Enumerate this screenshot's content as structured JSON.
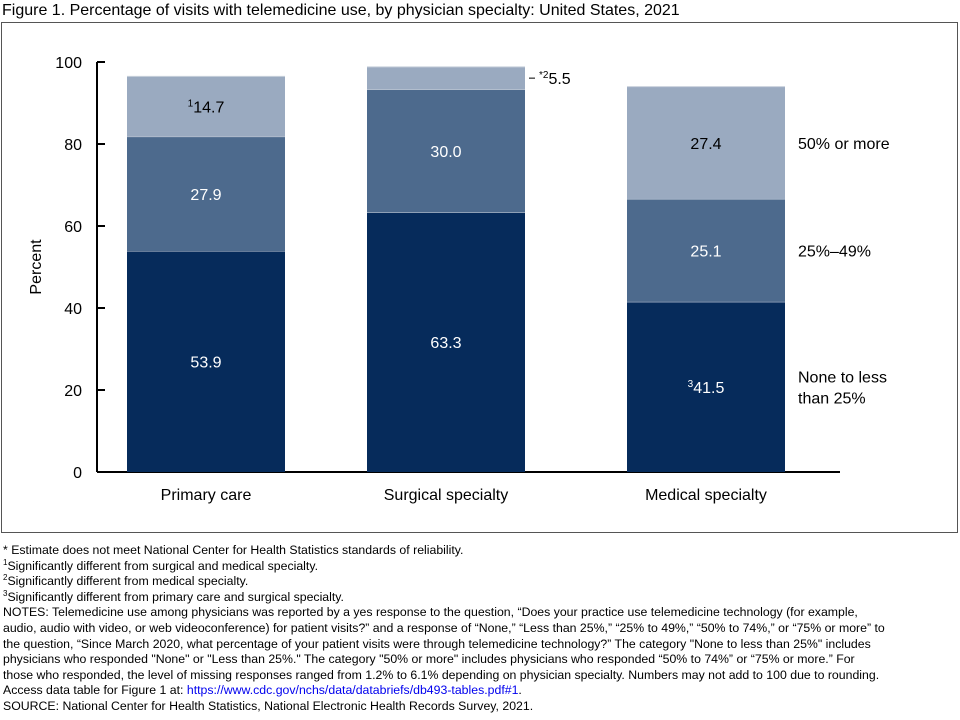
{
  "title": "Figure 1. Percentage of visits with telemedicine use, by physician specialty: United States, 2021",
  "chart_data": {
    "type": "bar",
    "stacked": true,
    "categories": [
      "Primary care",
      "Surgical specialty",
      "Medical specialty"
    ],
    "series": [
      {
        "name": "None to less than 25%",
        "values": [
          53.9,
          63.3,
          41.5
        ],
        "labels": [
          "53.9",
          "63.3",
          "41.5"
        ],
        "label_sups": [
          "",
          "",
          "3"
        ],
        "color": "#062b5b"
      },
      {
        "name": "25%–49%",
        "values": [
          27.9,
          30.0,
          25.1
        ],
        "labels": [
          "27.9",
          "30.0",
          "25.1"
        ],
        "label_sups": [
          "",
          "",
          ""
        ],
        "color": "#4d6a8d"
      },
      {
        "name": "50% or more",
        "values": [
          14.7,
          5.5,
          27.4
        ],
        "labels": [
          "14.7",
          "5.5",
          "27.4"
        ],
        "label_sups": [
          "1",
          "*2",
          ""
        ],
        "color": "#9aaac0"
      }
    ],
    "ylabel": "Percent",
    "xlabel": "",
    "ylim": [
      0,
      100
    ],
    "yticks": [
      0,
      20,
      40,
      60,
      80,
      100
    ],
    "legend_placement": "right",
    "grid": false
  },
  "footnotes": {
    "star": "* Estimate does not meet National Center for Health Statistics standards of reliability.",
    "n1": "Significantly different from surgical and medical specialty.",
    "n2": "Significantly different from medical specialty.",
    "n3": "Significantly different from primary care and surgical specialty.",
    "notes_lines": [
      "NOTES: Telemedicine use among physicians was reported by a yes response to the question, “Does your practice use telemedicine technology (for example,",
      "audio, audio with video, or web videoconference) for patient visits?” and a response of “None,” “Less than 25%,” “25% to 49%,” “50% to 74%,” or “75% or more” to",
      "the question, “Since March 2020, what percentage of your patient visits were through telemedicine technology?” The category \"None to less than 25%\" includes",
      "physicians who responded \"None\" or \"Less than 25%.\" The category \"50% or more\" includes physicians who responded “50% to 74%” or “75% or more.” For",
      "those who responded, the level of missing responses ranged from 1.2% to 6.1% depending on physician specialty.  Numbers may not add to 100 due to rounding."
    ],
    "access_prefix": "Access data table for Figure 1 at: ",
    "access_link": "https://www.cdc.gov/nchs/data/databriefs/db493-tables.pdf#1",
    "access_suffix": ".",
    "source": "SOURCE: National Center for Health Statistics, National Electronic Health Records Survey, 2021."
  }
}
